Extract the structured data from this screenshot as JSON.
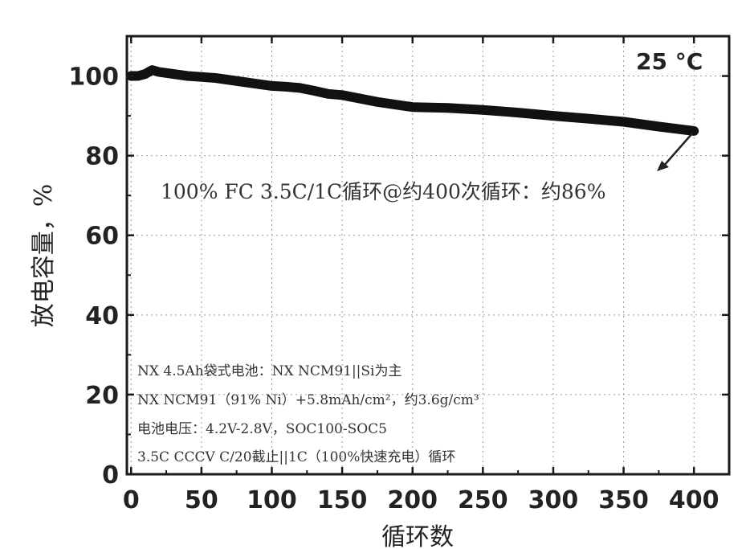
{
  "chart_data": {
    "type": "line",
    "xlabel": "循环数",
    "ylabel": "放电容量，%",
    "xlim": [
      -3,
      425
    ],
    "ylim": [
      0,
      110
    ],
    "xticks": [
      0,
      50,
      100,
      150,
      200,
      250,
      300,
      350,
      400
    ],
    "yticks": [
      0,
      20,
      40,
      60,
      80,
      100
    ],
    "grid": true,
    "temperature_label": "25 °C",
    "annotation": "100% FC 3.5C/1C循环@约400次循环：约86%",
    "notes": [
      "NX 4.5Ah袋式电池：NX NCM91||Si为主",
      "NX NCM91（91% Ni）+5.8mAh/cm²，约3.6g/cm³",
      "电池电压：4.2V-2.8V，SOC100-SOC5",
      "3.5C CCCV C/20截止||1C（100%快速充电）循环"
    ],
    "series": [
      {
        "color": "#111111",
        "x": [
          0,
          5,
          10,
          15,
          20,
          40,
          60,
          80,
          100,
          110,
          120,
          130,
          140,
          150,
          175,
          200,
          225,
          250,
          275,
          300,
          325,
          350,
          375,
          400
        ],
        "y": [
          100,
          100,
          100.5,
          101.5,
          101,
          100,
          99.5,
          98.5,
          97.5,
          97.3,
          97,
          96.3,
          95.5,
          95.2,
          93.5,
          92.2,
          92,
          91.5,
          90.8,
          90,
          89.3,
          88.5,
          87.3,
          86.2
        ]
      }
    ]
  }
}
